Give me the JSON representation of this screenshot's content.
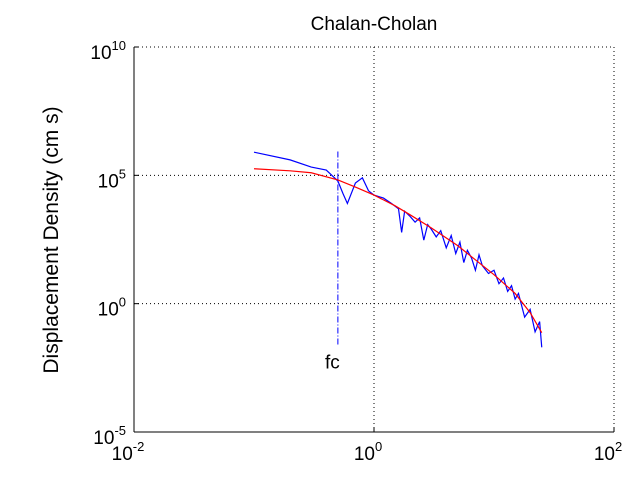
{
  "chart_data": {
    "type": "line",
    "title": "Chalan-Cholan",
    "ylabel": "Displacement Density (cm s)",
    "xscale": "log",
    "yscale": "log",
    "xlim": [
      0.01,
      100
    ],
    "ylim": [
      1e-05,
      10000000000.0
    ],
    "xticks": [
      {
        "value": 0.01,
        "label": "10^-2"
      },
      {
        "value": 1,
        "label": "10^0"
      },
      {
        "value": 100,
        "label": "10^2"
      }
    ],
    "yticks": [
      {
        "value": 1e-05,
        "label": "10^-5"
      },
      {
        "value": 1,
        "label": "10^0"
      },
      {
        "value": 100000,
        "label": "10^5"
      },
      {
        "value": 10000000000.0,
        "label": "10^10"
      }
    ],
    "grid": true,
    "series": [
      {
        "color": "#0000ff",
        "x": [
          0.1,
          0.2,
          0.3,
          0.4,
          0.5,
          0.55,
          0.6,
          0.7,
          0.8,
          0.9,
          1,
          1.2,
          1.4,
          1.6,
          1.7,
          1.8,
          2,
          2.2,
          2.4,
          2.6,
          2.8,
          3,
          3.3,
          3.6,
          4,
          4.4,
          4.8,
          5.2,
          5.6,
          6,
          6.5,
          7,
          7.5,
          8,
          9,
          10,
          11,
          12,
          13,
          14,
          15,
          16,
          18,
          20,
          22,
          24,
          25
        ],
        "values": [
          800000,
          400000,
          210000,
          160000,
          60000,
          20000,
          8000,
          50000,
          80000,
          25000,
          17000,
          13000,
          8000,
          5000,
          600,
          4000,
          2500,
          1500,
          2200,
          300,
          1200,
          800,
          400,
          700,
          150,
          450,
          90,
          250,
          40,
          120,
          60,
          20,
          80,
          30,
          15,
          20,
          6,
          10,
          3,
          5,
          1.5,
          2.5,
          0.3,
          0.6,
          0.08,
          0.2,
          0.02
        ]
      },
      {
        "color": "#ff0000",
        "x": [
          0.1,
          0.2,
          0.3,
          0.5,
          0.7,
          1,
          1.5,
          2,
          3,
          5,
          7,
          10,
          15,
          20,
          25
        ],
        "values": [
          180000,
          150000,
          126000,
          66000,
          35000,
          17000,
          6500,
          2900,
          900,
          180,
          51,
          13.5,
          2.5,
          0.45,
          0.074
        ]
      }
    ],
    "annotation": {
      "text": "fc",
      "x": 0.45,
      "y": 0.003
    },
    "fc_line": {
      "x": 0.5,
      "ymin": 0.025,
      "ymax": 850000,
      "color": "#0000ff"
    }
  }
}
